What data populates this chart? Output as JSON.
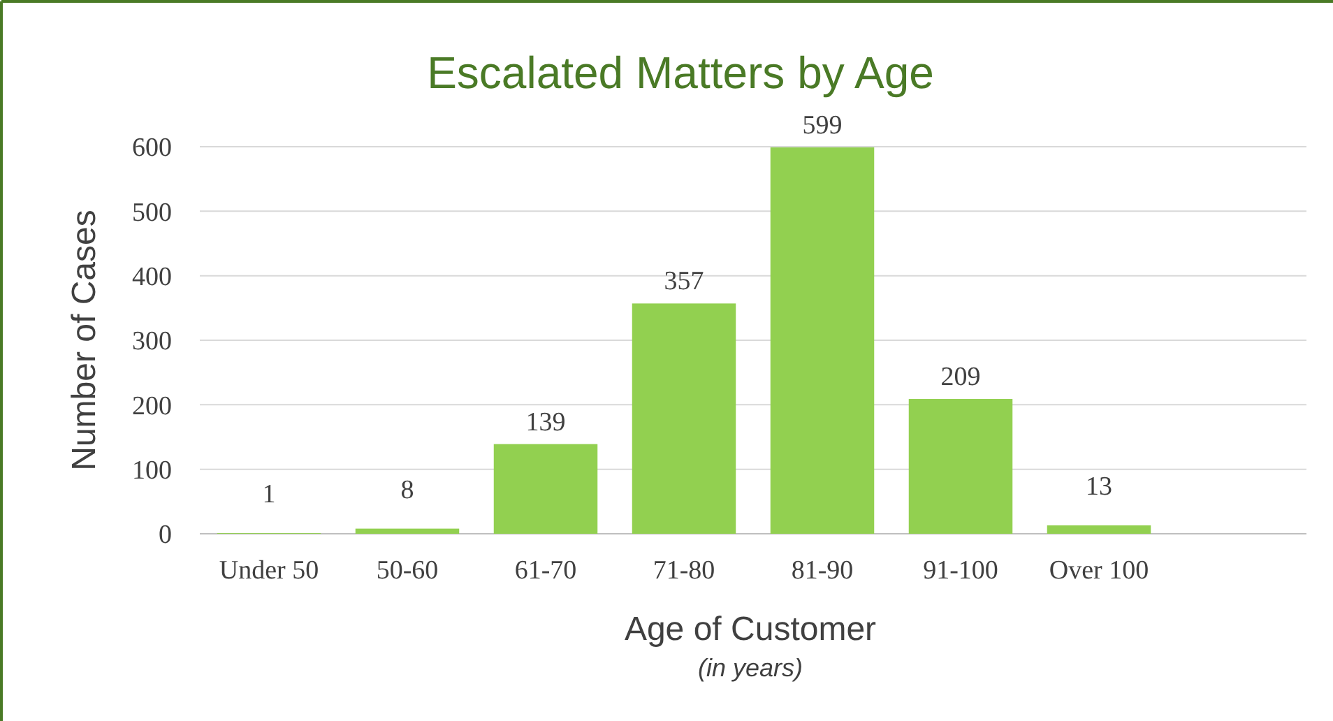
{
  "chart_data": {
    "type": "bar",
    "title": "Escalated Matters by Age",
    "xlabel": "Age of Customer",
    "ylabel": "Number of Cases",
    "annotations": [
      "(in years)"
    ],
    "categories": [
      "Under 50",
      "50-60",
      "61-70",
      "71-80",
      "81-90",
      "91-100",
      "Over 100",
      null
    ],
    "values": [
      1,
      8,
      139,
      357,
      599,
      209,
      13,
      null
    ],
    "color": "#92d050",
    "data_labels": true,
    "ylim": [
      0,
      600
    ],
    "yticks": [
      0,
      100,
      200,
      300,
      400,
      500,
      600
    ],
    "grid": "y"
  }
}
